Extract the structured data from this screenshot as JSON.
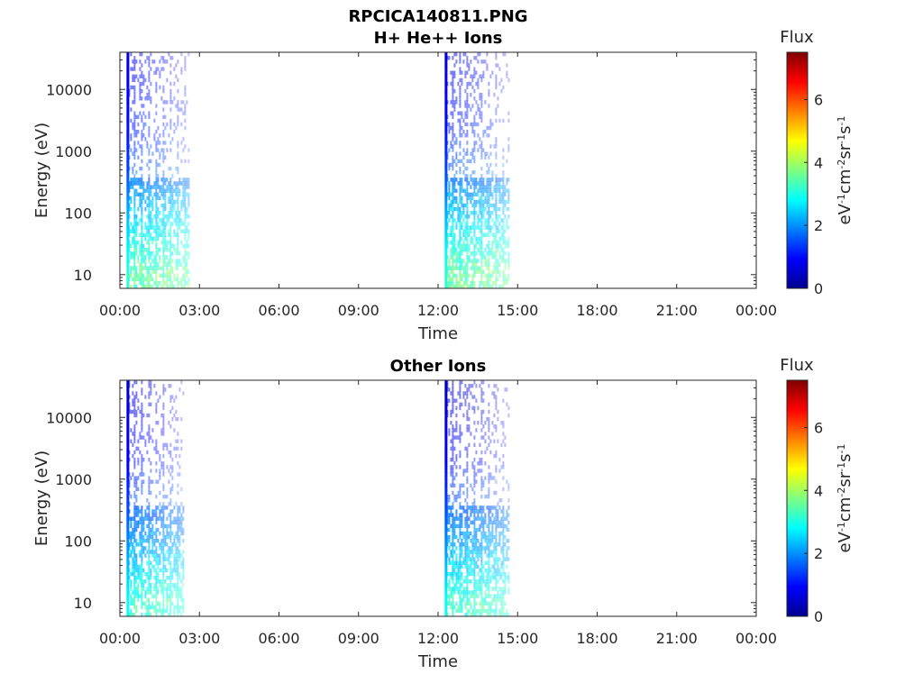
{
  "figure": {
    "title_line1": "RPCICA140811.PNG"
  },
  "colorbar": {
    "label": "Flux",
    "range": [
      0,
      7.5
    ],
    "ticks": [
      0,
      2,
      4,
      6
    ],
    "colormap": "jet"
  },
  "chart_data": [
    {
      "type": "heatmap",
      "title": "H+ He++ Ions",
      "xlabel": "Time",
      "ylabel": "Energy (eV)",
      "x_ticks": [
        "00:00",
        "03:00",
        "06:00",
        "09:00",
        "12:00",
        "15:00",
        "18:00",
        "21:00",
        "00:00"
      ],
      "xlim_hours": [
        0,
        24
      ],
      "y_scale": "log",
      "ylim": [
        6,
        40000
      ],
      "y_ticks": [
        10,
        100,
        1000,
        10000
      ],
      "colorbar_label": "eV-1cm-2sr-1s-1",
      "observation_windows_hours": [
        [
          0.25,
          2.6
        ],
        [
          12.25,
          14.65
        ]
      ],
      "flux_level_by_energy": [
        {
          "energy": 10,
          "flux": 3.5
        },
        {
          "energy": 50,
          "flux": 2.8
        },
        {
          "energy": 150,
          "flux": 2.3
        },
        {
          "energy": 500,
          "flux": 1.6
        },
        {
          "energy": 2000,
          "flux": 1.2
        },
        {
          "energy": 10000,
          "flux": 1.0
        },
        {
          "energy": 35000,
          "flux": 0.8
        }
      ]
    },
    {
      "type": "heatmap",
      "title": "Other Ions",
      "xlabel": "Time",
      "ylabel": "Energy (eV)",
      "x_ticks": [
        "00:00",
        "03:00",
        "06:00",
        "09:00",
        "12:00",
        "15:00",
        "18:00",
        "21:00",
        "00:00"
      ],
      "xlim_hours": [
        0,
        24
      ],
      "y_scale": "log",
      "ylim": [
        6,
        40000
      ],
      "y_ticks": [
        10,
        100,
        1000,
        10000
      ],
      "colorbar_label": "eV-1cm-2sr-1s-1",
      "observation_windows_hours": [
        [
          0.25,
          2.4
        ],
        [
          12.25,
          14.65
        ]
      ],
      "flux_level_by_energy": [
        {
          "energy": 10,
          "flux": 3.2
        },
        {
          "energy": 50,
          "flux": 2.5
        },
        {
          "energy": 150,
          "flux": 2.0
        },
        {
          "energy": 500,
          "flux": 1.5
        },
        {
          "energy": 2000,
          "flux": 1.0
        },
        {
          "energy": 10000,
          "flux": 0.8
        },
        {
          "energy": 35000,
          "flux": 0.6
        }
      ]
    }
  ]
}
